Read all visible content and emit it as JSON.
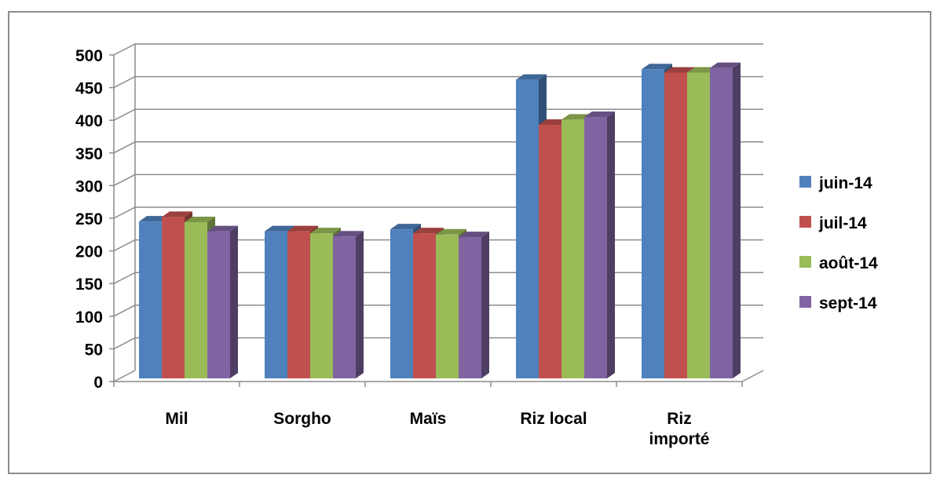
{
  "chart_data": {
    "type": "bar",
    "style": "3d-clustered-column",
    "categories": [
      "Mil",
      "Sorgho",
      "Maïs",
      "Riz local",
      "Riz importé"
    ],
    "category_lines": [
      [
        "Mil"
      ],
      [
        "Sorgho"
      ],
      [
        "Maïs"
      ],
      [
        "Riz local"
      ],
      [
        "Riz",
        "importé"
      ]
    ],
    "series": [
      {
        "name": "juin-14",
        "color": "#4F81BD",
        "values": [
          245,
          230,
          233,
          462,
          478
        ]
      },
      {
        "name": "juil-14",
        "color": "#C0504D",
        "values": [
          252,
          230,
          227,
          393,
          473
        ]
      },
      {
        "name": "août-14",
        "color": "#9BBB59",
        "values": [
          244,
          227,
          225,
          401,
          473
        ]
      },
      {
        "name": "sept-14",
        "color": "#8064A2",
        "values": [
          230,
          222,
          221,
          405,
          480
        ]
      }
    ],
    "ylim": [
      0,
      500
    ],
    "yticks": [
      "0",
      "50",
      "100",
      "150",
      "200",
      "250",
      "300",
      "350",
      "400",
      "450",
      "500"
    ],
    "title": "",
    "xlabel": "",
    "ylabel": "",
    "grid": true,
    "legend": "right"
  }
}
